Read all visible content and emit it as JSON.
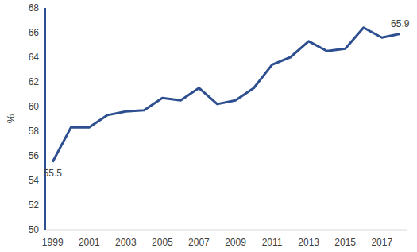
{
  "chart_data": {
    "type": "line",
    "y_label": "%",
    "x": [
      1999,
      2000,
      2001,
      2002,
      2003,
      2004,
      2005,
      2006,
      2007,
      2008,
      2009,
      2010,
      2011,
      2012,
      2013,
      2014,
      2015,
      2016,
      2017,
      2018
    ],
    "series": [
      {
        "name": null,
        "color": "#2e4f8f",
        "values": [
          55.5,
          58.3,
          58.3,
          59.3,
          59.6,
          59.7,
          60.7,
          60.5,
          61.5,
          60.2,
          60.5,
          61.5,
          63.4,
          64.0,
          65.3,
          64.5,
          64.7,
          66.4,
          65.6,
          65.9
        ]
      }
    ],
    "annotations": [
      {
        "x": 1999,
        "y": 55.5,
        "text": "55.5"
      },
      {
        "x": 2018,
        "y": 65.9,
        "text": "65.9"
      }
    ],
    "xlim": [
      1998.6,
      2018.4
    ],
    "xticks": [
      1999,
      2001,
      2003,
      2005,
      2007,
      2009,
      2011,
      2013,
      2015,
      2017
    ],
    "ylim": [
      50,
      68
    ],
    "yticks": [
      50,
      52,
      54,
      56,
      58,
      60,
      62,
      64,
      66,
      68
    ],
    "grid": false
  }
}
